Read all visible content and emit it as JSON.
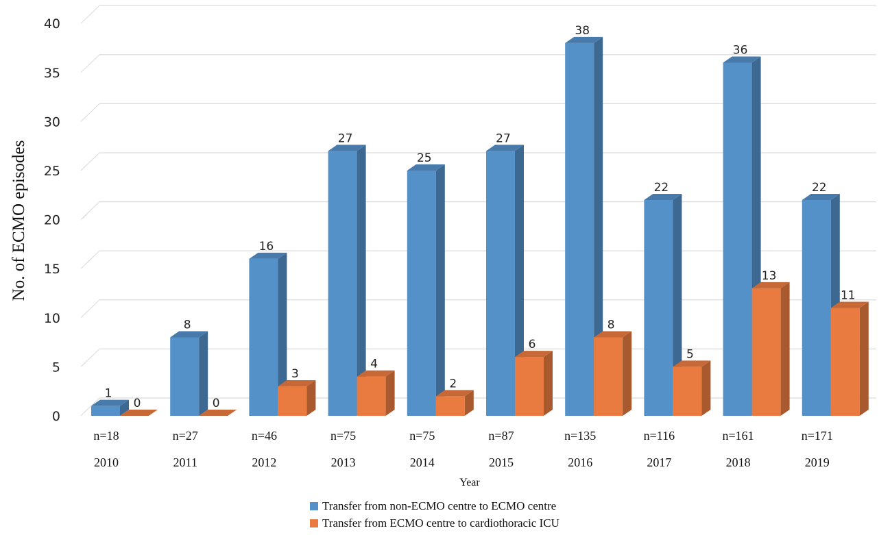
{
  "chart_data": {
    "type": "bar",
    "style": "3d-clustered-column",
    "categories": [
      "2010",
      "2011",
      "2012",
      "2013",
      "2014",
      "2015",
      "2016",
      "2017",
      "2018",
      "2019"
    ],
    "sample_sizes": [
      "n=18",
      "n=27",
      "n=46",
      "n=75",
      "n=75",
      "n=87",
      "n=135",
      "n=116",
      "n=161",
      "n=171"
    ],
    "series": [
      {
        "name": "Transfer from non-ECMO centre to ECMO centre",
        "values": [
          1,
          8,
          16,
          27,
          25,
          27,
          38,
          22,
          36,
          22
        ],
        "color": "#5591c9"
      },
      {
        "name": "Transfer from ECMO centre to cardiothoracic ICU",
        "values": [
          0,
          0,
          3,
          4,
          2,
          6,
          8,
          5,
          13,
          11
        ],
        "color": "#e97b40"
      }
    ],
    "xlabel": "Year",
    "ylabel": "No. of ECMO episodes",
    "ylim": [
      0,
      40
    ],
    "yticks": [
      0,
      5,
      10,
      15,
      20,
      25,
      30,
      35,
      40
    ],
    "grid": true,
    "data_labels": true,
    "legend_position": "bottom"
  }
}
